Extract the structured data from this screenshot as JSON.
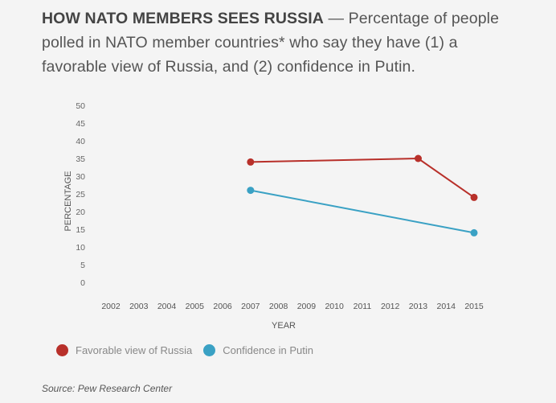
{
  "header": {
    "title": "HOW NATO MEMBERS SEES RUSSIA",
    "dash": "—",
    "subtitle": "Percentage of people polled in NATO member countries* who say they have (1) a favorable view of Russia, and (2) confidence in Putin."
  },
  "chart_data": {
    "type": "line",
    "xlabel": "YEAR",
    "ylabel": "PERCENTAGE",
    "x_ticks": [
      "2002",
      "2003",
      "2004",
      "2005",
      "2006",
      "2007",
      "2008",
      "2009",
      "2010",
      "2011",
      "2012",
      "2013",
      "2014",
      "2015"
    ],
    "y_ticks": [
      0,
      5,
      10,
      15,
      20,
      25,
      30,
      35,
      40,
      45,
      50
    ],
    "ylim": [
      0,
      50
    ],
    "xlim": [
      2002,
      2015
    ],
    "grid": false,
    "legend_position": "bottom-left",
    "series": [
      {
        "name": "Favorable view of Russia",
        "color": "#b8302a",
        "points": [
          [
            2007,
            34
          ],
          [
            2013,
            35
          ],
          [
            2015,
            24
          ]
        ]
      },
      {
        "name": "Confidence in Putin",
        "color": "#3aa1c4",
        "points": [
          [
            2007,
            26
          ],
          [
            2015,
            14
          ]
        ]
      }
    ]
  },
  "source": "Source: Pew Research Center"
}
